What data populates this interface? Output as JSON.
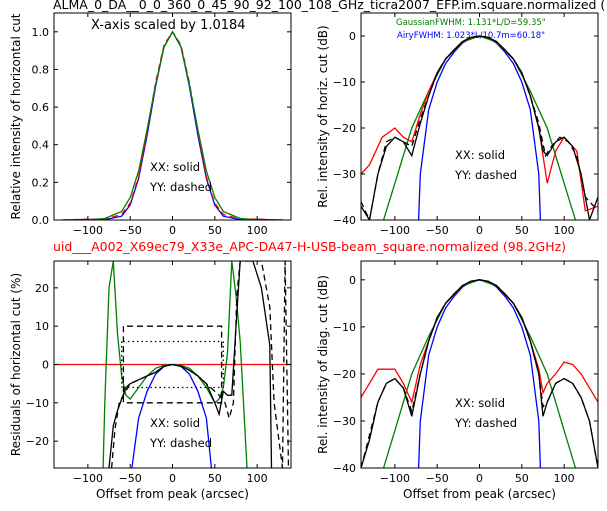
{
  "titles": {
    "top": "ALMA_0_DA__0_0_360_0_45_90_92_100_108_GHz_ticra2007_EFP.im.square.normalized (",
    "middle": "uid___A002_X69ec79_X33e_APC-DA47-H-USB-beam_square.normalized (98.2GHz)",
    "scale_note": "X-axis scaled by 1.0184",
    "gauss_note": "GaussianFWHM: 1.131*L/D=59.35\"",
    "airy_note": "AiryFWHM: 1.023*L/10.7m=60.18\""
  },
  "legend": {
    "solid": "XX: solid",
    "dashed": "YY: dashed"
  },
  "colors": {
    "model": "#0000ff",
    "measured": "#ff0000",
    "gaussian": "#008000",
    "data": "#000000",
    "zero": "#ff0000"
  },
  "chart_data": [
    {
      "id": "top-left",
      "type": "line",
      "ylabel": "Relative intensity of horizontal cut",
      "xlabel": "",
      "xlim": [
        -140,
        140
      ],
      "ylim": [
        0,
        1.1
      ],
      "xticks": [
        -100,
        -50,
        0,
        50,
        100
      ],
      "yticks": [
        0.0,
        0.2,
        0.4,
        0.6,
        0.8,
        1.0
      ],
      "series": [
        {
          "color": "blue",
          "style": "solid",
          "x": [
            -130,
            -100,
            -80,
            -60,
            -50,
            -40,
            -30,
            -20,
            -10,
            0,
            10,
            20,
            30,
            40,
            50,
            60,
            80,
            100,
            130
          ],
          "y": [
            0.0,
            0.003,
            0.002,
            0.02,
            0.08,
            0.22,
            0.45,
            0.71,
            0.92,
            1.0,
            0.92,
            0.71,
            0.45,
            0.22,
            0.08,
            0.02,
            0.002,
            0.003,
            0.0
          ]
        },
        {
          "color": "red",
          "style": "dashed",
          "x": [
            -130,
            -100,
            -80,
            -60,
            -50,
            -40,
            -30,
            -20,
            -10,
            0,
            10,
            20,
            30,
            40,
            50,
            60,
            80,
            100,
            130
          ],
          "y": [
            0.0,
            0.005,
            0.004,
            0.03,
            0.09,
            0.23,
            0.47,
            0.73,
            0.93,
            1.0,
            0.93,
            0.73,
            0.47,
            0.23,
            0.09,
            0.03,
            0.004,
            0.005,
            0.0
          ]
        },
        {
          "color": "green",
          "style": "solid",
          "x": [
            -130,
            -100,
            -80,
            -60,
            -50,
            -40,
            -30,
            -20,
            -10,
            0,
            10,
            20,
            30,
            40,
            50,
            60,
            80,
            100,
            130
          ],
          "y": [
            0.0,
            0.001,
            0.008,
            0.045,
            0.12,
            0.26,
            0.48,
            0.72,
            0.92,
            1.0,
            0.92,
            0.72,
            0.48,
            0.26,
            0.12,
            0.045,
            0.008,
            0.001,
            0.0
          ]
        }
      ]
    },
    {
      "id": "top-right",
      "type": "line",
      "ylabel": "Rel. intensity of horiz. cut (dB)",
      "xlabel": "",
      "xlim": [
        -140,
        140
      ],
      "ylim": [
        -40,
        5
      ],
      "xticks": [
        -100,
        -50,
        0,
        50,
        100
      ],
      "yticks": [
        0,
        -10,
        -20,
        -30,
        -40
      ],
      "series": [
        {
          "color": "blue",
          "style": "solid",
          "x": [
            -72,
            -70,
            -60,
            -50,
            -40,
            -30,
            -20,
            -10,
            0,
            10,
            20,
            30,
            40,
            50,
            60,
            70,
            72
          ],
          "y": [
            -40,
            -30,
            -16,
            -10,
            -6,
            -3.5,
            -1.5,
            -0.4,
            0,
            -0.4,
            -1.5,
            -3.5,
            -6,
            -10,
            -16,
            -30,
            -40
          ]
        },
        {
          "color": "green",
          "style": "solid",
          "x": [
            -120,
            -100,
            -80,
            -60,
            -40,
            -20,
            0,
            20,
            40,
            60,
            80,
            100,
            120
          ],
          "y": [
            -44,
            -32,
            -20,
            -12,
            -5,
            -1.3,
            0,
            -1.3,
            -5,
            -12,
            -20,
            -32,
            -44
          ]
        },
        {
          "color": "red",
          "style": "solid",
          "x": [
            -140,
            -130,
            -115,
            -100,
            -90,
            -80,
            -70,
            -60,
            -50,
            -40,
            -30,
            -20,
            -10,
            0,
            10,
            20,
            30,
            40,
            50,
            60,
            70,
            80,
            90,
            100,
            115,
            125,
            140
          ],
          "y": [
            -30,
            -28,
            -22,
            -20,
            -22,
            -23,
            -17,
            -12,
            -8,
            -5,
            -3,
            -1.2,
            -0.3,
            0,
            -0.3,
            -1.2,
            -3,
            -5,
            -8,
            -13,
            -20,
            -32,
            -25,
            -22,
            -25,
            -38,
            -37
          ]
        },
        {
          "color": "black",
          "style": "solid",
          "x": [
            -140,
            -130,
            -120,
            -110,
            -100,
            -90,
            -80,
            -70,
            -60,
            -50,
            -40,
            -30,
            -20,
            -10,
            0,
            10,
            20,
            30,
            40,
            50,
            60,
            70,
            75,
            80,
            90,
            100,
            110,
            120,
            130,
            140
          ],
          "y": [
            -37,
            -40,
            -30,
            -24,
            -22,
            -23,
            -26,
            -19,
            -13,
            -8,
            -5,
            -3,
            -1.2,
            -0.3,
            0,
            -0.3,
            -1.2,
            -3,
            -5,
            -8,
            -13,
            -20,
            -25,
            -26,
            -23,
            -22,
            -24,
            -30,
            -40,
            -35
          ]
        },
        {
          "color": "black",
          "style": "dashed",
          "x": [
            -140,
            -130,
            -120,
            -110,
            -100,
            -90,
            -80,
            -70,
            -60,
            -50,
            -40,
            -30,
            -20,
            -10,
            0,
            10,
            20,
            30,
            40,
            50,
            60,
            70,
            78,
            85,
            95,
            105,
            115,
            125,
            140
          ],
          "y": [
            -36,
            -40,
            -30,
            -23,
            -22,
            -23,
            -24,
            -18,
            -13,
            -8,
            -5,
            -3,
            -1.2,
            -0.3,
            0,
            -0.3,
            -1.2,
            -3,
            -5,
            -8,
            -13,
            -19,
            -26,
            -24,
            -22,
            -23,
            -26,
            -35,
            -38
          ]
        }
      ]
    },
    {
      "id": "bottom-left",
      "type": "line",
      "ylabel": "Residuals of horizontal cut (%)",
      "xlabel": "Offset from peak (arcsec)",
      "xlim": [
        -140,
        140
      ],
      "ylim": [
        -27,
        27
      ],
      "xticks": [
        -100,
        -50,
        0,
        50,
        100
      ],
      "yticks": [
        20,
        10,
        0,
        -10,
        -20
      ],
      "series": [
        {
          "color": "red",
          "style": "solid",
          "x": [
            -140,
            140
          ],
          "y": [
            0,
            0
          ]
        },
        {
          "color": "green",
          "style": "solid",
          "x": [
            -82,
            -80,
            -75,
            -70,
            -65,
            -60,
            -55,
            -50,
            -40,
            -30,
            -20,
            -10,
            0,
            10,
            20,
            30,
            40,
            50,
            55,
            60,
            65,
            70,
            75,
            80,
            88,
            90
          ],
          "y": [
            -27,
            -10,
            20,
            27,
            8,
            -3,
            -8,
            -9,
            -6,
            -3,
            -1,
            -0.2,
            0,
            -0.2,
            -1,
            -3,
            -6,
            -10,
            -9,
            -6,
            3,
            27,
            18,
            6,
            -27,
            -27
          ]
        },
        {
          "color": "blue",
          "style": "solid",
          "x": [
            -48,
            -40,
            -30,
            -20,
            -10,
            0,
            10,
            20,
            30,
            40,
            46
          ],
          "y": [
            -27,
            -14,
            -7,
            -2.5,
            -0.5,
            0,
            -0.5,
            -2.5,
            -7,
            -14,
            -27
          ]
        },
        {
          "color": "black",
          "style": "solid",
          "x": [
            -75,
            -70,
            -65,
            -60,
            -55,
            -50,
            -40,
            -30,
            -20,
            -10,
            0,
            10,
            20,
            30,
            40,
            50,
            55,
            60,
            65,
            70,
            75,
            80,
            85,
            95,
            105,
            115,
            117
          ],
          "y": [
            -27,
            -16,
            -12,
            -9,
            -6,
            -5,
            -4,
            -3,
            -2,
            -0.5,
            0,
            -0.5,
            -1.5,
            -3,
            -5,
            -10,
            -13,
            -7,
            -8,
            -8,
            10,
            27,
            27,
            27,
            20,
            5,
            -27
          ]
        },
        {
          "color": "black",
          "style": "dashed",
          "x": [
            -72,
            -68,
            -63,
            -58,
            -50,
            -40,
            -30,
            -20,
            -10,
            0,
            10,
            20,
            30,
            40,
            50,
            55,
            62,
            67,
            72,
            76,
            80,
            85,
            95,
            105,
            115,
            120,
            130,
            133,
            137
          ],
          "y": [
            -27,
            -17,
            -10,
            -8,
            -5,
            -4,
            -3,
            -2,
            -0.5,
            0,
            -0.5,
            -1.5,
            -3,
            -5,
            -7,
            -8,
            -10,
            -14,
            -10,
            18,
            27,
            27,
            27,
            27,
            15,
            -10,
            -27,
            27,
            -27
          ]
        },
        {
          "color": "black",
          "style": "dashed",
          "x": [
            -58,
            -58,
            58,
            58,
            -58
          ],
          "y": [
            10,
            -10,
            -10,
            10,
            10
          ]
        },
        {
          "color": "black",
          "style": "dotted",
          "x": [
            -58,
            58
          ],
          "y": [
            6,
            6
          ]
        },
        {
          "color": "black",
          "style": "dotted",
          "x": [
            -58,
            58
          ],
          "y": [
            -6,
            -6
          ]
        },
        {
          "color": "black",
          "style": "dotted",
          "x": [
            -60,
            -60
          ],
          "y": [
            6,
            -6
          ]
        },
        {
          "color": "black",
          "style": "dotted",
          "x": [
            60,
            60
          ],
          "y": [
            6,
            -6
          ]
        }
      ]
    },
    {
      "id": "bottom-right",
      "type": "line",
      "ylabel": "Rel. intensity of diag. cut (dB)",
      "xlabel": "Offset from peak (arcsec)",
      "xlim": [
        -140,
        140
      ],
      "ylim": [
        -40,
        4
      ],
      "xticks": [
        -100,
        -50,
        0,
        50,
        100
      ],
      "yticks": [
        0,
        -10,
        -20,
        -30,
        -40
      ],
      "series": [
        {
          "color": "blue",
          "style": "solid",
          "x": [
            -72,
            -70,
            -60,
            -50,
            -40,
            -30,
            -20,
            -10,
            0,
            10,
            20,
            30,
            40,
            50,
            60,
            70,
            72
          ],
          "y": [
            -40,
            -30,
            -16,
            -10,
            -6,
            -3.5,
            -1.5,
            -0.4,
            0,
            -0.4,
            -1.5,
            -3.5,
            -6,
            -10,
            -16,
            -30,
            -40
          ]
        },
        {
          "color": "green",
          "style": "solid",
          "x": [
            -120,
            -100,
            -80,
            -60,
            -40,
            -20,
            0,
            20,
            40,
            60,
            80,
            100,
            120
          ],
          "y": [
            -44,
            -32,
            -20,
            -12,
            -5,
            -1.3,
            0,
            -1.3,
            -5,
            -12,
            -20,
            -32,
            -44
          ]
        },
        {
          "color": "red",
          "style": "solid",
          "x": [
            -140,
            -130,
            -120,
            -110,
            -100,
            -90,
            -80,
            -70,
            -60,
            -50,
            -40,
            -30,
            -20,
            -10,
            0,
            10,
            20,
            30,
            40,
            50,
            60,
            70,
            75,
            80,
            90,
            100,
            110,
            120,
            130,
            140
          ],
          "y": [
            -25,
            -22,
            -19,
            -19,
            -19,
            -22,
            -26,
            -18,
            -13,
            -8,
            -5,
            -3,
            -1.2,
            -0.3,
            0,
            -0.3,
            -1.2,
            -3,
            -5,
            -8,
            -13,
            -19,
            -24,
            -22,
            -20,
            -17.5,
            -18,
            -20,
            -23,
            -26
          ]
        },
        {
          "color": "black",
          "style": "solid",
          "x": [
            -140,
            -130,
            -120,
            -110,
            -100,
            -90,
            -80,
            -70,
            -60,
            -50,
            -40,
            -30,
            -20,
            -10,
            0,
            10,
            20,
            30,
            40,
            50,
            60,
            70,
            75,
            80,
            90,
            100,
            110,
            120,
            130,
            140
          ],
          "y": [
            -40,
            -34,
            -26,
            -22,
            -21,
            -23,
            -29,
            -20,
            -13,
            -8,
            -5,
            -3,
            -1.2,
            -0.3,
            0,
            -0.3,
            -1.2,
            -3,
            -5,
            -8,
            -13,
            -20,
            -29,
            -26,
            -22,
            -21,
            -22,
            -25,
            -30,
            -40
          ]
        },
        {
          "color": "black",
          "style": "dashed",
          "x": [
            -140,
            -130,
            -120,
            -110,
            -100,
            -90,
            -80,
            -70,
            -60,
            -50,
            -40,
            -30,
            -20,
            -10,
            0,
            10,
            20,
            30,
            40,
            50,
            60,
            70,
            75,
            80,
            90,
            100,
            110,
            120,
            130,
            140
          ],
          "y": [
            -40,
            -33,
            -26,
            -22,
            -21,
            -23,
            -28,
            -20,
            -13,
            -8,
            -5,
            -3,
            -1.2,
            -0.3,
            0,
            -0.3,
            -1.2,
            -3,
            -5,
            -8,
            -13,
            -20,
            -27,
            -26,
            -22,
            -21,
            -22,
            -25,
            -30,
            -40
          ]
        }
      ]
    }
  ]
}
